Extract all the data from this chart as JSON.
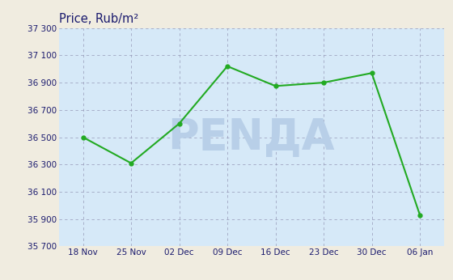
{
  "x_labels": [
    "18 Nov",
    "25 Nov",
    "02 Dec",
    "09 Dec",
    "16 Dec",
    "23 Dec",
    "30 Dec",
    "06 Jan"
  ],
  "y_values": [
    36500,
    36310,
    36600,
    37020,
    36875,
    36900,
    36970,
    35930
  ],
  "title": "Price, Rub/m²",
  "y_ticks": [
    35700,
    35900,
    36100,
    36300,
    36500,
    36700,
    36900,
    37100,
    37300
  ],
  "y_tick_labels": [
    "35 700",
    "35 900",
    "36 100",
    "36 300",
    "36 500",
    "36 700",
    "36 900",
    "37 100",
    "37 300"
  ],
  "ylim": [
    35700,
    37300
  ],
  "line_color": "#22aa22",
  "marker_color": "#22aa22",
  "bg_color": "#d6e9f8",
  "outer_bg": "#f0ece0",
  "grid_color": "#8888aa",
  "title_color": "#1a1a6e",
  "tick_label_color": "#1a1a6e",
  "watermark_color": "#b8cfe8"
}
